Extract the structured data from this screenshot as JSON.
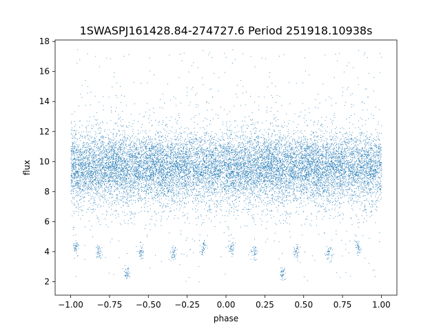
{
  "chart_data": {
    "type": "scatter",
    "title": "1SWASPJ161428.84-274727.6 Period 251918.10938s",
    "xlabel": "phase",
    "ylabel": "flux",
    "xlim": [
      -1.1,
      1.1
    ],
    "ylim": [
      1.1,
      18.1
    ],
    "xticks": [
      -1.0,
      -0.75,
      -0.5,
      -0.25,
      0.0,
      0.25,
      0.5,
      0.75,
      1.0
    ],
    "xtick_labels": [
      "−1.00",
      "−0.75",
      "−0.50",
      "−0.25",
      "0.00",
      "0.25",
      "0.50",
      "0.75",
      "1.00"
    ],
    "yticks": [
      2,
      4,
      6,
      8,
      10,
      12,
      14,
      16,
      18
    ],
    "ytick_labels": [
      "2",
      "4",
      "6",
      "8",
      "10",
      "12",
      "14",
      "16",
      "18"
    ],
    "grid": false,
    "legend": "none",
    "marker_color": "#1f77b4",
    "series": [
      {
        "x_range": [
          -1.0,
          1.0
        ],
        "core_flux": 9.6,
        "approx_points": 40000,
        "note_clusters": [
          {
            "phase": -0.97,
            "flux": 4.2
          },
          {
            "phase": -0.82,
            "flux": 4.0
          },
          {
            "phase": -0.64,
            "flux": 2.6
          },
          {
            "phase": -0.55,
            "flux": 4.0
          },
          {
            "phase": -0.34,
            "flux": 3.9
          },
          {
            "phase": -0.15,
            "flux": 4.2
          },
          {
            "phase": 0.03,
            "flux": 4.2
          },
          {
            "phase": 0.18,
            "flux": 4.0
          },
          {
            "phase": 0.36,
            "flux": 2.6
          },
          {
            "phase": 0.45,
            "flux": 4.0
          },
          {
            "phase": 0.66,
            "flux": 3.9
          },
          {
            "phase": 0.85,
            "flux": 4.2
          }
        ]
      }
    ]
  }
}
